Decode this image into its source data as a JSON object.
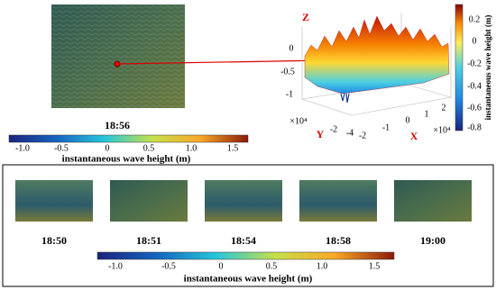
{
  "main_image": {
    "time": "18:56"
  },
  "colorbar_top": {
    "ticks": [
      "-1.0",
      "-0.5",
      "0",
      "0.5",
      "1.0",
      "1.5"
    ],
    "label": "instantaneous wave height (m)"
  },
  "surface_plot": {
    "z_label": "Z",
    "x_label": "X",
    "y_label": "Y",
    "z_ticks": [
      "0",
      "-0.5",
      "-1"
    ],
    "x_ticks": [
      "-2",
      "-1",
      "0",
      "1",
      "2"
    ],
    "y_ticks": [
      "-2",
      "-4"
    ],
    "x_scale": "×10⁴",
    "y_scale": "×10⁴",
    "colorbar": {
      "ticks": [
        "0.2",
        "0",
        "-0.2",
        "-0.4",
        "-0.6",
        "-0.8"
      ],
      "label": "instantaneous wave height (m)"
    }
  },
  "sequence": {
    "times": [
      "18:50",
      "18:51",
      "18:54",
      "18:58",
      "19:00"
    ]
  },
  "colorbar_bottom": {
    "ticks": [
      "-1.0",
      "-0.5",
      "0",
      "0.5",
      "1.0",
      "1.5"
    ],
    "label": "instantaneous wave height (m)"
  }
}
